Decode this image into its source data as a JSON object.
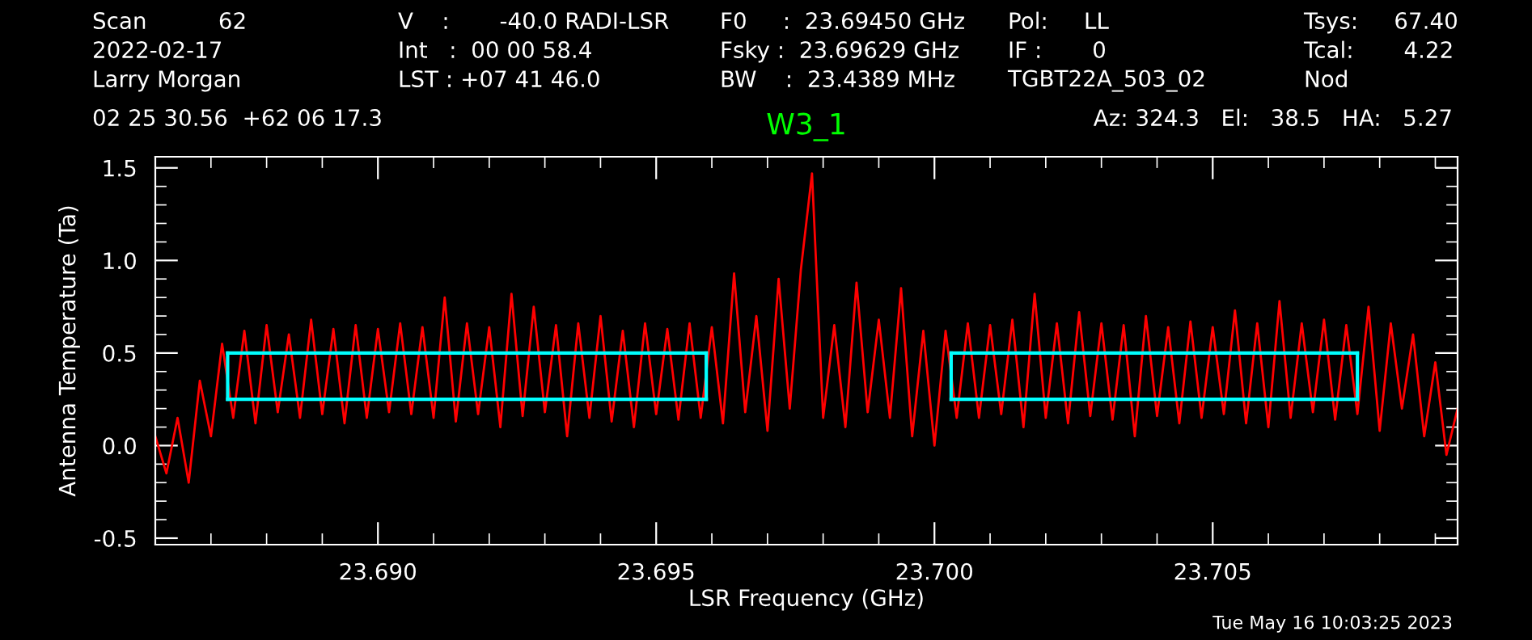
{
  "chart_data": {
    "type": "line",
    "title": "W3_1",
    "xlabel": "LSR Frequency (GHz)",
    "ylabel": "Antenna Temperature (Ta)",
    "annotations": [
      "Scan          62",
      "2022-02-17",
      "Larry Morgan",
      "V    :       -40.0 RADI-LSR",
      "Int   :  00 00 58.4",
      "LST : +07 41 46.0",
      "F0     :  23.69450 GHz",
      "Fsky :  23.69629 GHz",
      "BW    :  23.4389 MHz",
      "Pol:     LL",
      "IF :       0",
      "TGBT22A_503_02",
      "Tsys:     67.40",
      "Tcal:       4.22",
      "Nod",
      "02 25 30.56  +62 06 17.3",
      "Az: 324.3   El:   38.5   HA:   5.27",
      "Tue May 16 10:03:25 2023"
    ],
    "xlim": [
      23.686,
      23.7094
    ],
    "ylim": [
      -0.535,
      1.56
    ],
    "xticks": [
      {
        "value": 23.686,
        "label": null
      },
      {
        "value": 23.687,
        "label": null
      },
      {
        "value": 23.688,
        "label": null
      },
      {
        "value": 23.689,
        "label": null
      },
      {
        "value": 23.69,
        "label": "23.690"
      },
      {
        "value": 23.691,
        "label": null
      },
      {
        "value": 23.692,
        "label": null
      },
      {
        "value": 23.693,
        "label": null
      },
      {
        "value": 23.694,
        "label": null
      },
      {
        "value": 23.695,
        "label": "23.695"
      },
      {
        "value": 23.696,
        "label": null
      },
      {
        "value": 23.697,
        "label": null
      },
      {
        "value": 23.698,
        "label": null
      },
      {
        "value": 23.699,
        "label": null
      },
      {
        "value": 23.7,
        "label": "23.700"
      },
      {
        "value": 23.701,
        "label": null
      },
      {
        "value": 23.702,
        "label": null
      },
      {
        "value": 23.703,
        "label": null
      },
      {
        "value": 23.704,
        "label": null
      },
      {
        "value": 23.705,
        "label": "23.705"
      },
      {
        "value": 23.706,
        "label": null
      },
      {
        "value": 23.707,
        "label": null
      },
      {
        "value": 23.708,
        "label": null
      },
      {
        "value": 23.709,
        "label": null
      }
    ],
    "yticks": [
      {
        "value": -0.5,
        "label": "-0.5"
      },
      {
        "value": -0.4,
        "label": null
      },
      {
        "value": -0.3,
        "label": null
      },
      {
        "value": -0.2,
        "label": null
      },
      {
        "value": -0.1,
        "label": null
      },
      {
        "value": 0,
        "label": "0.0"
      },
      {
        "value": 0.1,
        "label": null
      },
      {
        "value": 0.2,
        "label": null
      },
      {
        "value": 0.3,
        "label": null
      },
      {
        "value": 0.4,
        "label": null
      },
      {
        "value": 0.5,
        "label": "0.5"
      },
      {
        "value": 0.6,
        "label": null
      },
      {
        "value": 0.7,
        "label": null
      },
      {
        "value": 0.8,
        "label": null
      },
      {
        "value": 0.9,
        "label": null
      },
      {
        "value": 1.0,
        "label": "1.0"
      },
      {
        "value": 1.1,
        "label": null
      },
      {
        "value": 1.2,
        "label": null
      },
      {
        "value": 1.3,
        "label": null
      },
      {
        "value": 1.4,
        "label": null
      },
      {
        "value": 1.5,
        "label": "1.5"
      }
    ],
    "grid": false,
    "legend": false,
    "line_style": "solid",
    "marker": "none",
    "series": [
      {
        "type": "line",
        "color": "#ff0000",
        "x": [
          23.686,
          23.6862,
          23.6864,
          23.6866,
          23.6868,
          23.687,
          23.6872,
          23.6874,
          23.6876,
          23.6878,
          23.688,
          23.6882,
          23.6884,
          23.6886,
          23.6888,
          23.689,
          23.6892,
          23.6894,
          23.6896,
          23.6898,
          23.69,
          23.6902,
          23.6904,
          23.6906,
          23.6908,
          23.691,
          23.6912,
          23.6914,
          23.6916,
          23.6918,
          23.692,
          23.6922,
          23.6924,
          23.6926,
          23.6928,
          23.693,
          23.6932,
          23.6934,
          23.6936,
          23.6938,
          23.694,
          23.6942,
          23.6944,
          23.6946,
          23.6948,
          23.695,
          23.6952,
          23.6954,
          23.6956,
          23.6958,
          23.696,
          23.6962,
          23.6964,
          23.6966,
          23.6968,
          23.697,
          23.6972,
          23.6974,
          23.6976,
          23.6978,
          23.698,
          23.6982,
          23.6984,
          23.6986,
          23.6988,
          23.699,
          23.6992,
          23.6994,
          23.6996,
          23.6998,
          23.7,
          23.7002,
          23.7004,
          23.7006,
          23.7008,
          23.701,
          23.7012,
          23.7014,
          23.7016,
          23.7018,
          23.702,
          23.7022,
          23.7024,
          23.7026,
          23.7028,
          23.703,
          23.7032,
          23.7034,
          23.7036,
          23.7038,
          23.704,
          23.7042,
          23.7044,
          23.7046,
          23.7048,
          23.705,
          23.7052,
          23.7054,
          23.7056,
          23.7058,
          23.706,
          23.7062,
          23.7064,
          23.7066,
          23.7068,
          23.707,
          23.7072,
          23.7074,
          23.7076,
          23.7078,
          23.708,
          23.7082,
          23.7084,
          23.7086,
          23.7088,
          23.709,
          23.7092,
          23.7094
        ],
        "values": [
          0.05,
          -0.15,
          0.15,
          -0.2,
          0.35,
          0.05,
          0.55,
          0.15,
          0.62,
          0.12,
          0.65,
          0.18,
          0.6,
          0.15,
          0.68,
          0.17,
          0.63,
          0.12,
          0.65,
          0.15,
          0.63,
          0.18,
          0.66,
          0.17,
          0.64,
          0.15,
          0.8,
          0.13,
          0.66,
          0.17,
          0.64,
          0.1,
          0.82,
          0.16,
          0.75,
          0.18,
          0.65,
          0.05,
          0.66,
          0.15,
          0.7,
          0.13,
          0.62,
          0.1,
          0.66,
          0.17,
          0.63,
          0.14,
          0.66,
          0.15,
          0.64,
          0.12,
          0.93,
          0.18,
          0.7,
          0.08,
          0.9,
          0.2,
          0.95,
          1.47,
          0.15,
          0.65,
          0.1,
          0.88,
          0.18,
          0.68,
          0.15,
          0.85,
          0.05,
          0.62,
          0.0,
          0.62,
          0.15,
          0.66,
          0.15,
          0.65,
          0.17,
          0.68,
          0.1,
          0.82,
          0.15,
          0.66,
          0.12,
          0.72,
          0.16,
          0.66,
          0.14,
          0.65,
          0.05,
          0.7,
          0.16,
          0.64,
          0.12,
          0.67,
          0.15,
          0.64,
          0.17,
          0.73,
          0.12,
          0.66,
          0.1,
          0.78,
          0.15,
          0.66,
          0.18,
          0.68,
          0.14,
          0.65,
          0.17,
          0.75,
          0.08,
          0.66,
          0.2,
          0.6,
          0.05,
          0.45,
          -0.05,
          0.2
        ]
      },
      {
        "type": "line",
        "color": "#00ffff",
        "x": [
          23.6873,
          23.6959
        ],
        "values": [
          0.25,
          0.25
        ]
      },
      {
        "type": "line",
        "color": "#00ffff",
        "x": [
          23.6873,
          23.6959
        ],
        "values": [
          0.5,
          0.5
        ]
      },
      {
        "type": "line",
        "color": "#00ffff",
        "x": [
          23.6873,
          23.6873
        ],
        "values": [
          0.25,
          0.5
        ]
      },
      {
        "type": "line",
        "color": "#00ffff",
        "x": [
          23.6959,
          23.6959
        ],
        "values": [
          0.25,
          0.5
        ]
      },
      {
        "type": "line",
        "color": "#00ffff",
        "x": [
          23.7003,
          23.7076
        ],
        "values": [
          0.25,
          0.25
        ]
      },
      {
        "type": "line",
        "color": "#00ffff",
        "x": [
          23.7003,
          23.7076
        ],
        "values": [
          0.5,
          0.5
        ]
      },
      {
        "type": "line",
        "color": "#00ffff",
        "x": [
          23.7003,
          23.7003
        ],
        "values": [
          0.25,
          0.5
        ]
      },
      {
        "type": "line",
        "color": "#00ffff",
        "x": [
          23.7076,
          23.7076
        ],
        "values": [
          0.25,
          0.5
        ]
      }
    ]
  }
}
